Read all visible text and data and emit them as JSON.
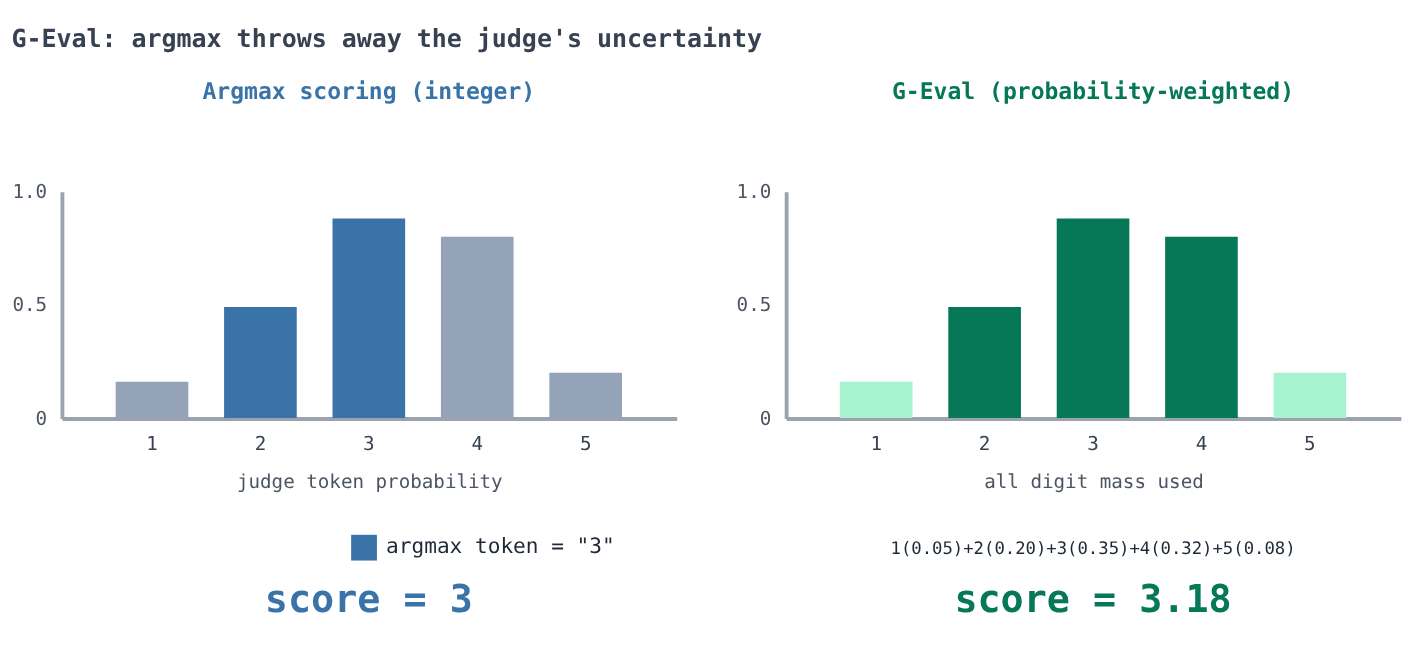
{
  "chart_data": [
    {
      "type": "bar",
      "subtitle": "G-Eval: argmax throws away the judge's uncertainty",
      "title": "Argmax scoring (integer)",
      "xlabel": "judge token probability",
      "categories": [
        "1",
        "2",
        "3",
        "4",
        "5"
      ],
      "series": [
        {
          "name": "argmax token = \"3\"",
          "color": "#3a73a8",
          "values": [
            null,
            0.49,
            0.88,
            null,
            null
          ]
        },
        {
          "color": "#94a3b8",
          "values": [
            0.16,
            null,
            null,
            0.8,
            0.2
          ]
        }
      ],
      "ylim": [
        0,
        1
      ],
      "yticks": [
        0,
        0.5,
        {
          "value": 1,
          "label": "1.0"
        }
      ],
      "legend": "bottom",
      "annotations": [
        "score = 3"
      ]
    },
    {
      "type": "bar",
      "title": "G-Eval (probability-weighted)",
      "xlabel": "all digit mass used",
      "categories": [
        "1",
        "2",
        "3",
        "4",
        "5"
      ],
      "values": [
        0.16,
        0.49,
        0.88,
        0.8,
        0.2
      ],
      "colors": [
        "#a7f3d0",
        "#067857",
        "#067857",
        "#067857",
        "#a7f3d0"
      ],
      "ylim": [
        0,
        1
      ],
      "yticks": [
        0,
        0.5,
        {
          "value": 1,
          "label": "1.0"
        }
      ],
      "annotations": [
        "1(0.05)+2(0.20)+3(0.35)+4(0.32)+5(0.08)",
        "score = 3.18"
      ]
    }
  ]
}
